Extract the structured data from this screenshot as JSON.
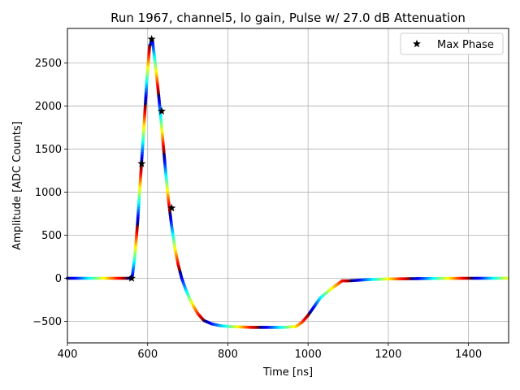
{
  "chart_data": {
    "type": "scatter",
    "title": "Run 1967, channel5, lo gain, Pulse w/ 27.0 dB Attenuation",
    "xlabel": "Time [ns]",
    "ylabel": "Amplitude [ADC Counts]",
    "xlim": [
      400,
      1500
    ],
    "ylim": [
      -750,
      2900
    ],
    "xticks": [
      400,
      600,
      800,
      1000,
      1200,
      1400
    ],
    "yticks": [
      -500,
      0,
      500,
      1000,
      1500,
      2000,
      2500
    ],
    "grid": true,
    "legend_position": "top-right",
    "colormap": "jet",
    "waveform": {
      "name": "",
      "marker": "dot",
      "x": [
        400,
        555,
        562,
        568,
        575,
        582,
        590,
        598,
        605,
        612,
        620,
        628,
        636,
        644,
        652,
        660,
        668,
        676,
        685,
        695,
        705,
        715,
        725,
        740,
        760,
        780,
        800,
        830,
        860,
        900,
        940,
        970,
        985,
        1000,
        1015,
        1030,
        1050,
        1070,
        1085,
        1100,
        1150,
        1200,
        1300,
        1400,
        1500
      ],
      "y": [
        0,
        0,
        30,
        250,
        650,
        1150,
        1700,
        2300,
        2700,
        2760,
        2450,
        2100,
        1700,
        1280,
        900,
        600,
        350,
        160,
        0,
        -130,
        -240,
        -330,
        -410,
        -490,
        -530,
        -550,
        -560,
        -565,
        -570,
        -570,
        -570,
        -560,
        -510,
        -430,
        -330,
        -230,
        -150,
        -80,
        -30,
        -30,
        -15,
        -8,
        -3,
        0,
        0
      ]
    },
    "series": [
      {
        "name": "Max Phase",
        "marker": "star",
        "color": "#000000",
        "x": [
          560,
          585,
          610,
          635,
          660
        ],
        "y": [
          0,
          1330,
          2775,
          1940,
          815
        ]
      }
    ]
  }
}
